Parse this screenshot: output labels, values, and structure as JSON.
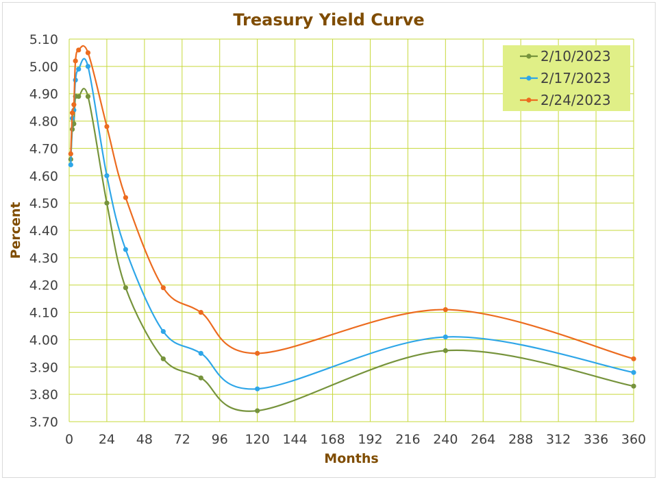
{
  "chart_data": {
    "type": "line",
    "title": "Treasury Yield Curve",
    "xlabel": "Months",
    "ylabel": "Percent",
    "xlim": [
      0,
      360
    ],
    "ylim": [
      3.7,
      5.1
    ],
    "x_ticks": [
      0,
      24,
      48,
      72,
      96,
      120,
      144,
      168,
      192,
      216,
      240,
      264,
      288,
      312,
      336,
      360
    ],
    "y_ticks": [
      3.7,
      3.8,
      3.9,
      4.0,
      4.1,
      4.2,
      4.3,
      4.4,
      4.5,
      4.6,
      4.7,
      4.8,
      4.9,
      5.0,
      5.1
    ],
    "grid": true,
    "legend_position": "top-right",
    "colors": {
      "title": "#7f4c00",
      "axis_label": "#7f4c00",
      "tick_label": "#404040",
      "grid": "#c6d83a",
      "legend_bg": "#e0ef87"
    },
    "series": [
      {
        "name": "2/10/2023",
        "color": "#76933c",
        "x": [
          1,
          2,
          3,
          4,
          6,
          12,
          24,
          36,
          60,
          84,
          120,
          240,
          360
        ],
        "y": [
          4.66,
          4.77,
          4.79,
          4.89,
          4.89,
          4.89,
          4.5,
          4.19,
          3.93,
          3.86,
          3.74,
          3.96,
          3.83
        ]
      },
      {
        "name": "2/17/2023",
        "color": "#2ea6e8",
        "x": [
          1,
          2,
          3,
          4,
          6,
          12,
          24,
          36,
          60,
          84,
          120,
          240,
          360
        ],
        "y": [
          4.64,
          4.81,
          4.84,
          4.95,
          4.99,
          5.0,
          4.6,
          4.33,
          4.03,
          3.95,
          3.82,
          4.01,
          3.88
        ]
      },
      {
        "name": "2/24/2023",
        "color": "#ec6b1f",
        "x": [
          1,
          2,
          3,
          4,
          6,
          12,
          24,
          36,
          60,
          84,
          120,
          240,
          360
        ],
        "y": [
          4.68,
          4.83,
          4.86,
          5.02,
          5.06,
          5.05,
          4.78,
          4.52,
          4.19,
          4.1,
          3.95,
          4.11,
          3.93
        ]
      }
    ]
  }
}
